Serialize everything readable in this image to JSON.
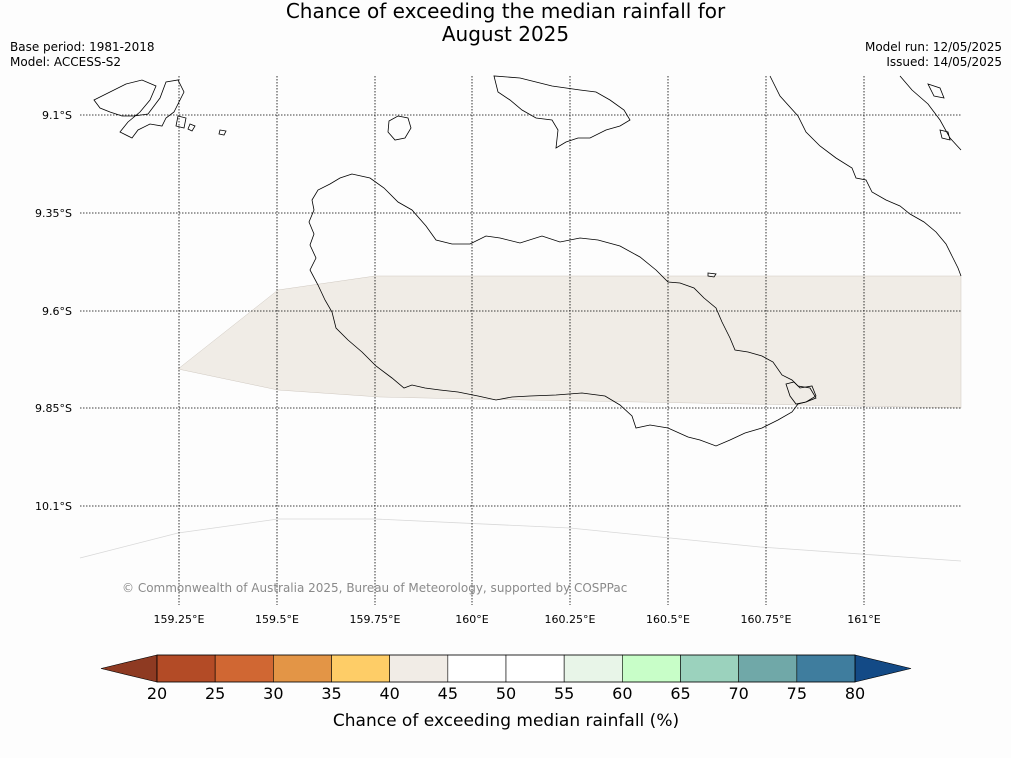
{
  "header": {
    "title_line1": "Chance of exceeding the median rainfall for",
    "title_line2": "August 2025",
    "base_period": "Base period: 1981-2018",
    "model": "Model: ACCESS-S2",
    "model_run": "Model run: 12/05/2025",
    "issued": "Issued: 14/05/2025"
  },
  "map": {
    "lat_labels": [
      "9.1°S",
      "9.35°S",
      "9.6°S",
      "9.85°S",
      "10.1°S"
    ],
    "lon_labels": [
      "159.25°E",
      "159.5°E",
      "159.75°E",
      "160°E",
      "160.25°E",
      "160.5°E",
      "160.75°E",
      "161°E"
    ],
    "copyright": "© Commonwealth of Australia 2025, Bureau of Meteorology, supported by COSPPac",
    "shaded_category": "40-45",
    "shaded_color": "#f0ece6"
  },
  "colorbar": {
    "title": "Chance of exceeding median rainfall (%)",
    "ticks": [
      "20",
      "25",
      "30",
      "35",
      "40",
      "45",
      "50",
      "55",
      "60",
      "65",
      "70",
      "75",
      "80"
    ],
    "under_color": "#8e3a22",
    "over_color": "#134a86",
    "colors": [
      "#b34b26",
      "#d06733",
      "#e39546",
      "#fecd67",
      "#f1ece6",
      "#ffffff",
      "#ffffff",
      "#e8f5e8",
      "#c8fec8",
      "#9bd2bd",
      "#70a8a8",
      "#3f7d9e"
    ]
  }
}
